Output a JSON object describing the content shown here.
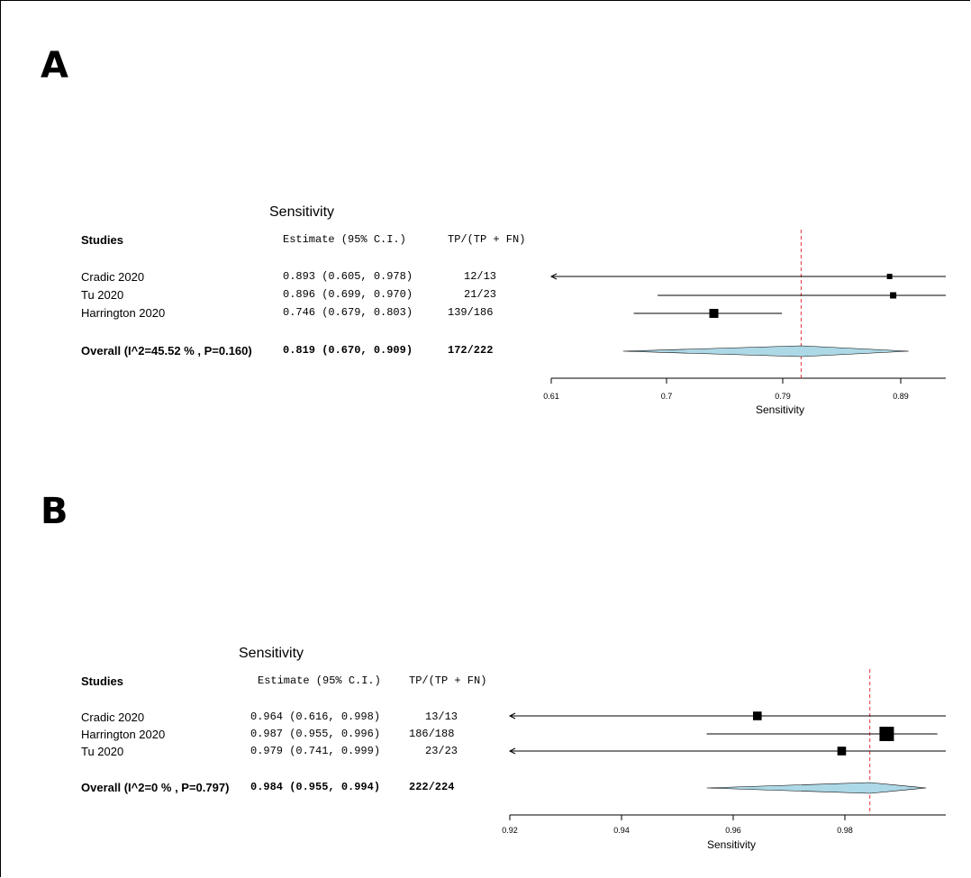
{
  "chart_data": [
    {
      "type": "forest",
      "panel_label": "A",
      "title": "Sensitivity",
      "columns": {
        "studies": "Studies",
        "estimate": "Estimate (95% C.I.)",
        "counts": "TP/(TP + FN)"
      },
      "xlabel": "Sensitivity",
      "xticks": [
        "0.61",
        "0.7",
        "0.79",
        "0.89"
      ],
      "xlim": [
        0.61,
        0.94
      ],
      "reference_line": 0.819,
      "studies": [
        {
          "name": "Cradic 2020",
          "estimate_text": "0.893 (0.605, 0.978)",
          "counts": "12/13",
          "estimate": 0.893,
          "lower": 0.605,
          "upper": 0.978,
          "weight": 0.6
        },
        {
          "name": "Tu 2020",
          "estimate_text": "0.896 (0.699, 0.970)",
          "counts": "21/23",
          "estimate": 0.896,
          "lower": 0.699,
          "upper": 0.97,
          "weight": 0.7
        },
        {
          "name": "Harrington 2020",
          "estimate_text": "0.746 (0.679, 0.803)",
          "counts": "139/186",
          "estimate": 0.746,
          "lower": 0.679,
          "upper": 0.803,
          "weight": 1.0
        }
      ],
      "overall": {
        "name": "Overall (I^2=45.52 % , P=0.160)",
        "estimate_text": "0.819 (0.670, 0.909)",
        "counts": "172/222",
        "estimate": 0.819,
        "lower": 0.67,
        "upper": 0.909
      }
    },
    {
      "type": "forest",
      "panel_label": "B",
      "title": "Sensitivity",
      "columns": {
        "studies": "Studies",
        "estimate": "Estimate (95% C.I.)",
        "counts": "TP/(TP + FN)"
      },
      "xlabel": "Sensitivity",
      "xticks": [
        "0.92",
        "0.94",
        "0.96",
        "0.98"
      ],
      "xlim": [
        0.92,
        0.9975
      ],
      "reference_line": 0.984,
      "studies": [
        {
          "name": "Cradic 2020",
          "estimate_text": "0.964 (0.616, 0.998)",
          "counts": "13/13",
          "estimate": 0.964,
          "lower": 0.616,
          "upper": 0.998,
          "weight": 0.6
        },
        {
          "name": "Harrington 2020",
          "estimate_text": "0.987 (0.955, 0.996)",
          "counts": "186/188",
          "estimate": 0.987,
          "lower": 0.955,
          "upper": 0.996,
          "weight": 1.0
        },
        {
          "name": "Tu 2020",
          "estimate_text": "0.979 (0.741, 0.999)",
          "counts": "23/23",
          "estimate": 0.979,
          "lower": 0.741,
          "upper": 0.999,
          "weight": 0.6
        }
      ],
      "overall": {
        "name": "Overall (I^2=0 % , P=0.797)",
        "estimate_text": "0.984 (0.955, 0.994)",
        "counts": "222/224",
        "estimate": 0.984,
        "lower": 0.955,
        "upper": 0.994
      }
    }
  ]
}
